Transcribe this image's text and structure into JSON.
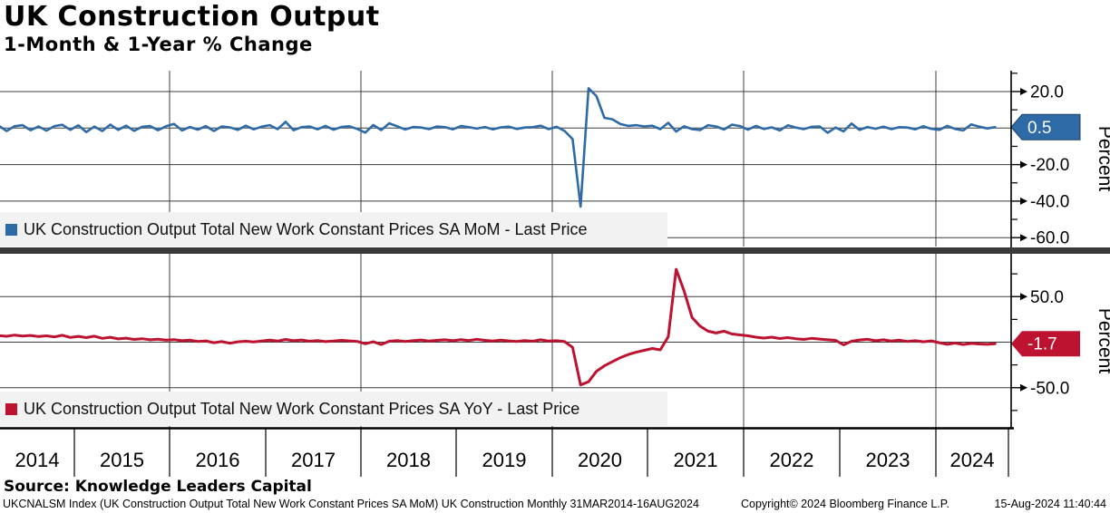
{
  "header": {
    "title": "UK Construction Output",
    "subtitle": "1-Month & 1-Year % Change"
  },
  "legend": {
    "mom": "UK Construction Output Total New Work Constant Prices SA MoM - Last Price",
    "yoy": "UK Construction Output Total New Work Constant Prices SA YoY - Last Price"
  },
  "source_line": "Source: Knowledge Leaders Capital",
  "footer": {
    "left": "UKCNALSM Index (UK Construction Output Total New Work Constant Prices SA MoM) UK Construction  Monthly 31MAR2014-16AUG2024",
    "copyright": "Copyright© 2024 Bloomberg Finance L.P.",
    "timestamp": "15-Aug-2024 11:40:44"
  },
  "colors": {
    "mom_blue": "#2e6ba6",
    "yoy_red": "#bd1230",
    "legend_bg": "#f2f2f2",
    "divider_gray": "#3b3b3b",
    "grid": "#3c3c3c"
  },
  "x_axis": {
    "years": [
      "2014",
      "2015",
      "2016",
      "2017",
      "2018",
      "2019",
      "2020",
      "2021",
      "2022",
      "2023",
      "2024"
    ]
  },
  "chart_data": [
    {
      "type": "line",
      "panel": "top",
      "series_name": "UK Construction Output Total New Work Constant Prices SA MoM",
      "ylabel": "Percent",
      "frequency": "monthly",
      "x_start": "2014-03",
      "x_end": "2024-08",
      "ylim": [
        -65,
        32
      ],
      "grid_values": [
        20,
        0,
        -20,
        -40,
        -60
      ],
      "yticks_major": [
        {
          "v": 20,
          "label": "20.0"
        },
        {
          "v": -20,
          "label": "-20.0"
        },
        {
          "v": -40,
          "label": "-40.0"
        },
        {
          "v": -60,
          "label": "-60.0"
        }
      ],
      "yticks_minor": [
        30,
        10,
        -10,
        -30,
        -50
      ],
      "last_price": 0.5,
      "last_price_label": "0.5",
      "values": [
        1.3,
        -1.6,
        1.0,
        1.6,
        -1.2,
        0.9,
        -1.4,
        1.1,
        1.8,
        -1.0,
        1.5,
        -2.2,
        0.8,
        -1.6,
        1.9,
        -1.0,
        1.3,
        -1.5,
        0.7,
        1.1,
        -1.2,
        1.0,
        2.3,
        -1.3,
        0.6,
        -0.9,
        1.1,
        -1.6,
        0.9,
        0.4,
        -1.0,
        1.3,
        -0.7,
        0.8,
        1.6,
        -0.6,
        3.4,
        -1.2,
        0.5,
        0.9,
        -0.7,
        1.2,
        -0.9,
        0.6,
        1.0,
        -0.5,
        -2.5,
        1.7,
        -1.1,
        2.6,
        1.0,
        -0.8,
        0.6,
        0.3,
        -0.6,
        0.9,
        0.5,
        -0.7,
        1.1,
        0.5,
        -0.3,
        0.6,
        -0.7,
        0.4,
        0.8,
        -0.5,
        0.3,
        0.5,
        1.3,
        -0.6,
        0.7,
        -1.6,
        -6.0,
        -43.0,
        21.8,
        17.5,
        5.6,
        4.8,
        2.2,
        1.2,
        1.6,
        0.9,
        1.3,
        -0.6,
        2.9,
        -1.9,
        1.0,
        -0.6,
        -1.1,
        1.6,
        0.9,
        -0.8,
        1.9,
        1.1,
        -0.9,
        1.2,
        -0.5,
        0.4,
        -1.3,
        1.5,
        0.3,
        -0.6,
        0.7,
        0.9,
        -2.6,
        0.3,
        -1.8,
        2.5,
        -1.0,
        0.6,
        -0.4,
        0.8,
        -0.6,
        0.5,
        0.3,
        -0.7,
        1.0,
        -0.4,
        -1.0,
        1.2,
        -0.5,
        -1.3,
        2.0,
        0.8,
        -0.2,
        0.5
      ]
    },
    {
      "type": "line",
      "panel": "bottom",
      "series_name": "UK Construction Output Total New Work Constant Prices SA YoY",
      "ylabel": "Percent",
      "frequency": "monthly",
      "x_start": "2014-03",
      "x_end": "2024-08",
      "ylim": [
        -95,
        97
      ],
      "grid_values": [
        50,
        0,
        -50
      ],
      "yticks_major": [
        {
          "v": 50,
          "label": "50.0"
        },
        {
          "v": -50,
          "label": "-50.0"
        }
      ],
      "yticks_minor": [
        75,
        25,
        -25,
        -75
      ],
      "last_price": -1.7,
      "last_price_label": "-1.7",
      "values": [
        7.2,
        6.5,
        7.8,
        6.8,
        7.4,
        6.2,
        7.0,
        5.8,
        7.6,
        5.2,
        6.4,
        5.0,
        6.6,
        4.2,
        5.4,
        3.6,
        4.4,
        3.0,
        3.8,
        2.6,
        3.2,
        2.2,
        2.8,
        1.6,
        2.2,
        0.8,
        1.4,
        -0.6,
        0.6,
        -1.2,
        0.4,
        1.0,
        0.2,
        1.2,
        2.2,
        1.2,
        3.0,
        1.6,
        2.4,
        1.0,
        1.8,
        0.6,
        1.2,
        2.0,
        1.4,
        0.8,
        -1.8,
        0.4,
        -2.6,
        1.0,
        1.8,
        0.8,
        1.6,
        2.4,
        1.2,
        2.0,
        2.6,
        1.6,
        2.8,
        1.8,
        3.2,
        2.0,
        1.2,
        2.2,
        1.4,
        0.8,
        1.8,
        1.0,
        2.6,
        1.2,
        1.6,
        0.6,
        -5.8,
        -47.0,
        -43.5,
        -32.0,
        -26.0,
        -21.5,
        -17.0,
        -13.5,
        -11.0,
        -9.0,
        -7.0,
        -8.5,
        6.0,
        80.0,
        56.0,
        27.0,
        17.5,
        12.0,
        10.0,
        12.0,
        9.0,
        8.0,
        7.0,
        5.5,
        4.5,
        5.5,
        4.0,
        5.0,
        3.8,
        3.0,
        4.2,
        3.4,
        2.6,
        2.0,
        -3.0,
        1.0,
        2.4,
        3.2,
        1.6,
        2.6,
        1.2,
        2.2,
        0.8,
        1.6,
        0.4,
        1.4,
        -0.6,
        -2.4,
        -1.0,
        -2.6,
        -1.4,
        -2.0,
        -2.4,
        -1.7
      ]
    }
  ]
}
